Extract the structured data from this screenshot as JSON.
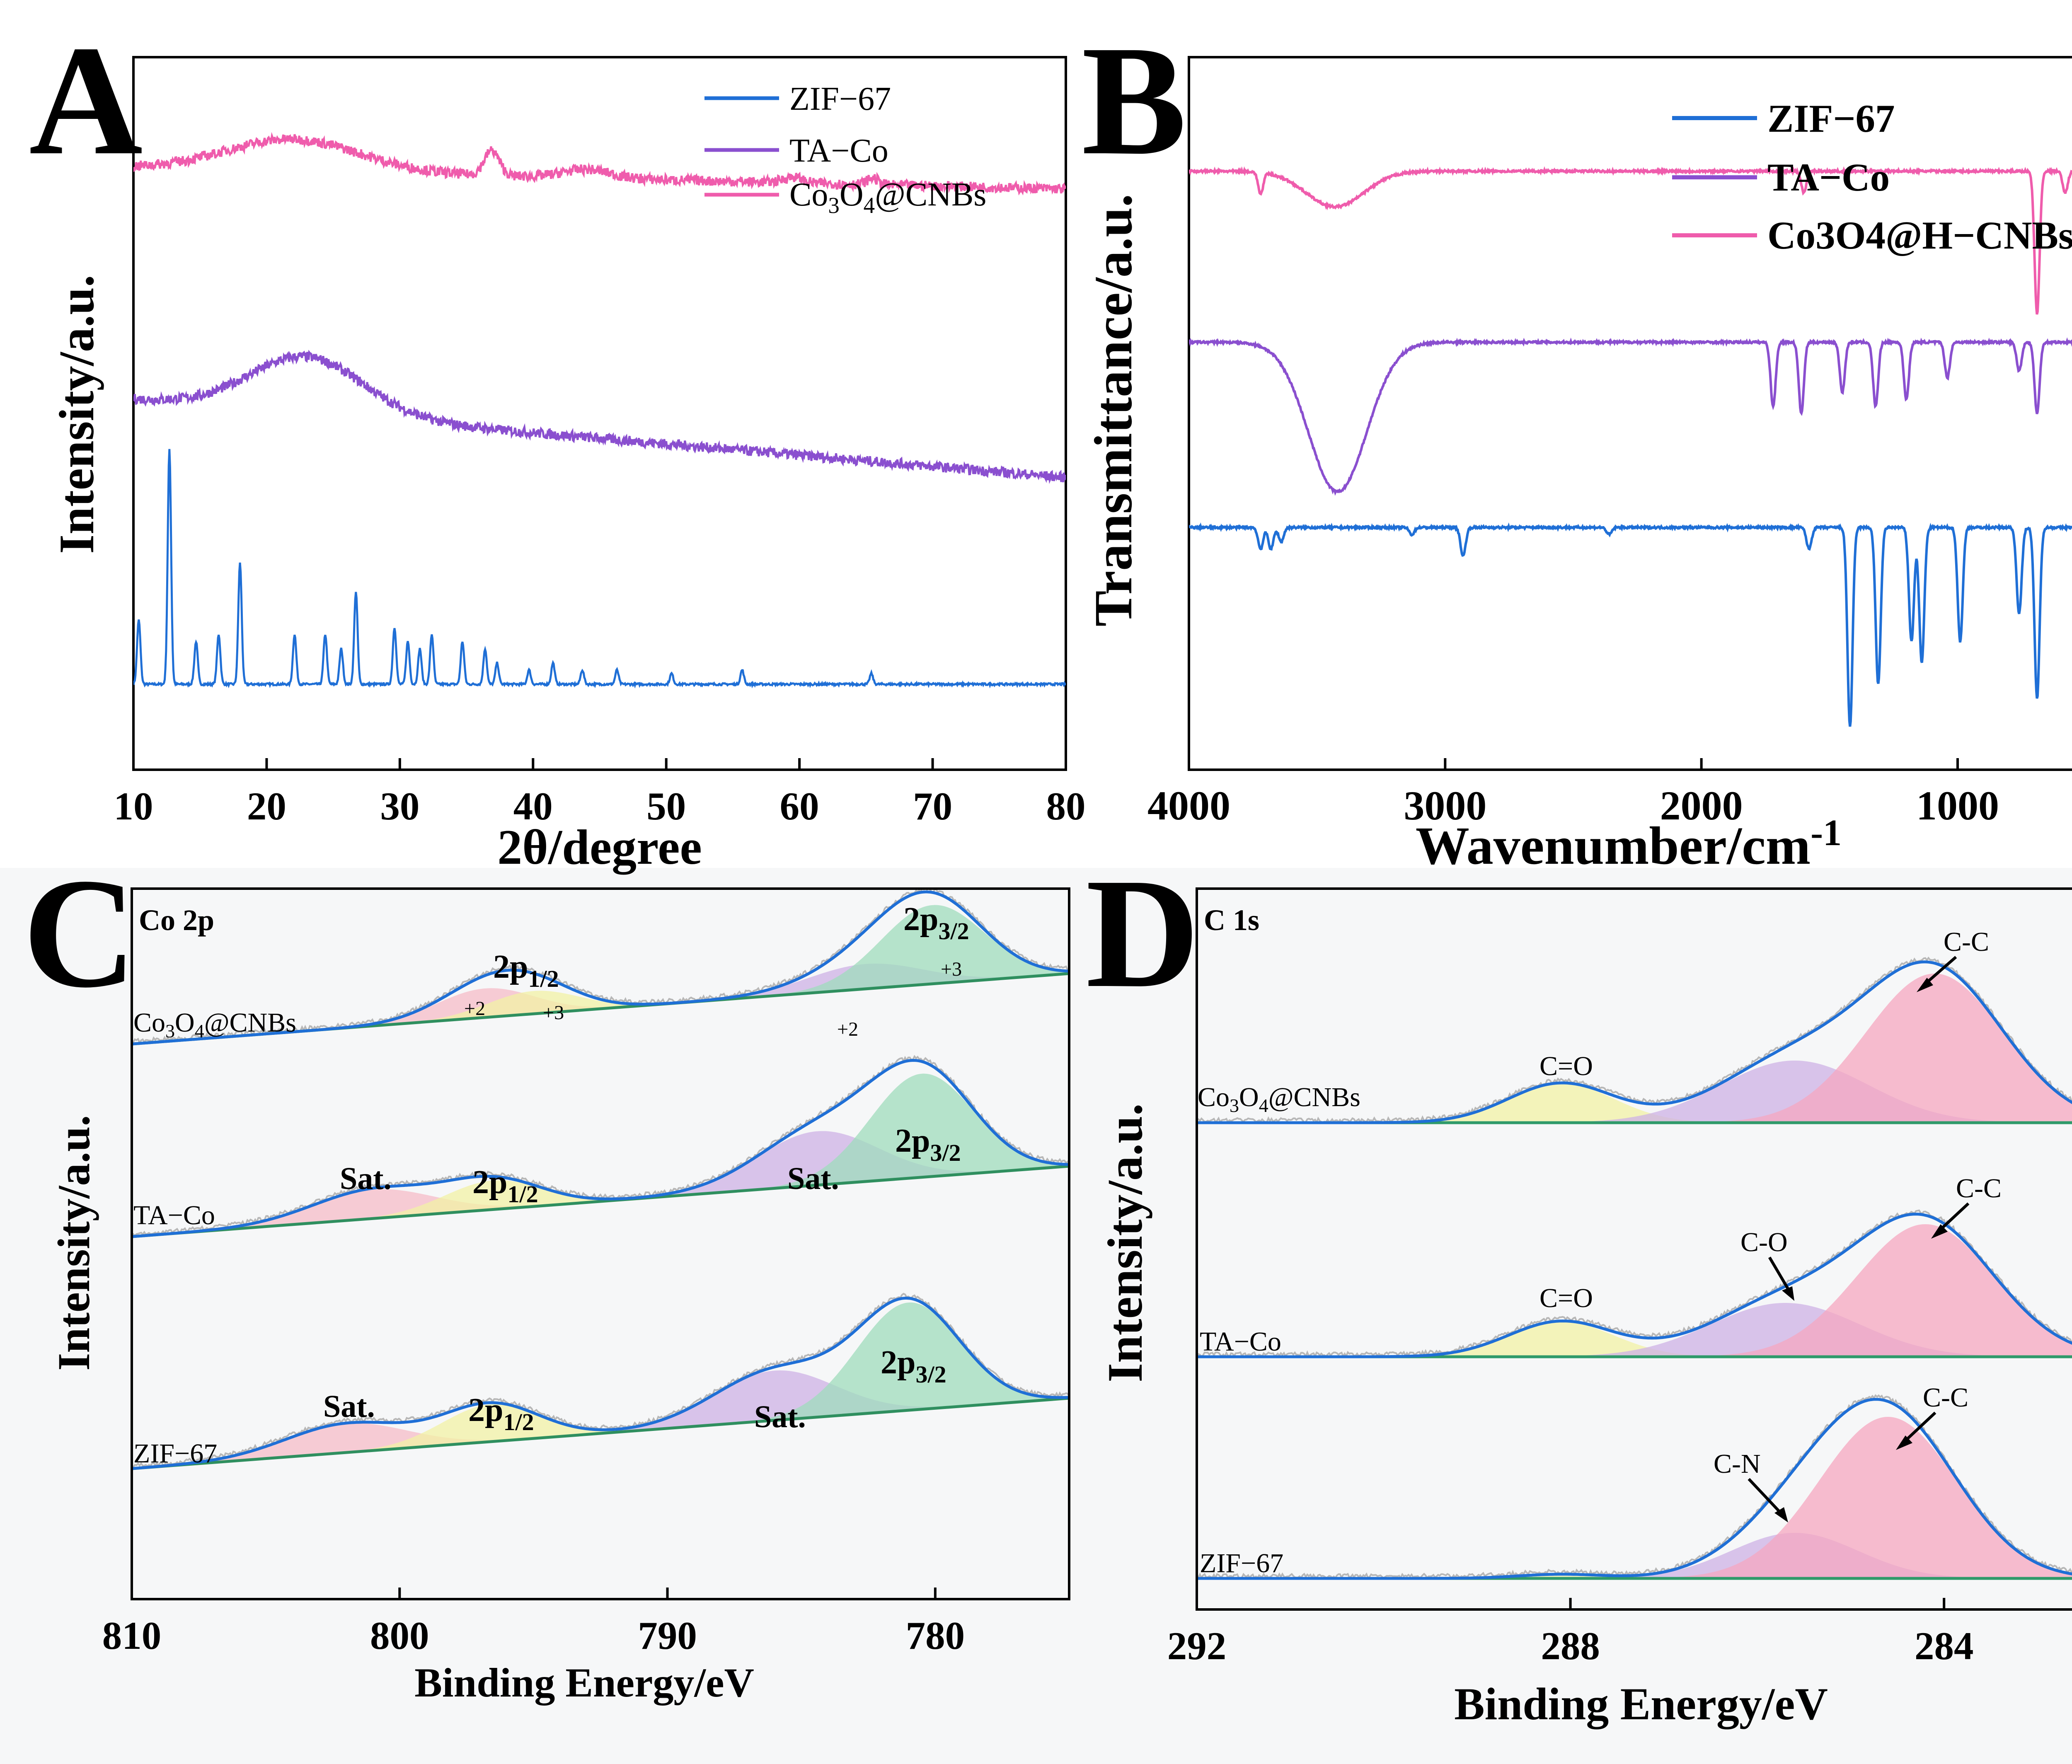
{
  "chart_data": [
    {
      "panel": "A",
      "type": "line",
      "xlabel": "2θ/degree",
      "ylabel": "Intensity/a.u.",
      "xlim": [
        10,
        80
      ],
      "xticks": [
        "10",
        "20",
        "30",
        "40",
        "50",
        "60",
        "70",
        "80"
      ],
      "legend_position": "top-right",
      "series": [
        {
          "name": "ZIF−67",
          "color": "#1f6fd6",
          "baseline": 0.12,
          "peaks": [
            [
              10.4,
              0.09
            ],
            [
              12.7,
              0.33
            ],
            [
              14.7,
              0.06
            ],
            [
              16.4,
              0.07
            ],
            [
              18.0,
              0.17
            ],
            [
              22.1,
              0.07
            ],
            [
              24.4,
              0.07
            ],
            [
              25.6,
              0.05
            ],
            [
              26.7,
              0.13
            ],
            [
              29.6,
              0.08
            ],
            [
              30.6,
              0.06
            ],
            [
              31.5,
              0.05
            ],
            [
              32.4,
              0.07
            ],
            [
              34.7,
              0.06
            ],
            [
              36.4,
              0.05
            ],
            [
              37.3,
              0.03
            ],
            [
              39.7,
              0.02
            ],
            [
              41.5,
              0.03
            ],
            [
              43.7,
              0.02
            ],
            [
              46.3,
              0.02
            ],
            [
              50.4,
              0.015
            ],
            [
              55.7,
              0.02
            ],
            [
              65.4,
              0.015
            ]
          ]
        },
        {
          "name": "TA−Co",
          "color": "#8a4fcf",
          "humps": [
            [
              23,
              0.42,
              0.08,
              6
            ]
          ],
          "start": 0.52,
          "end": 0.41
        },
        {
          "name": "Co3O4@CNBs",
          "color": "#ef5cac",
          "humps": [
            [
              22,
              0.875,
              0.045,
              7
            ],
            [
              36.9,
              0.865,
              0.035,
              0.8
            ],
            [
              44,
              0.845,
              0.012,
              2.5
            ],
            [
              59.5,
              0.825,
              0.008,
              1
            ],
            [
              65.5,
              0.826,
              0.009,
              0.6
            ]
          ],
          "start": 0.845,
          "end": 0.815
        }
      ],
      "legend": [
        "ZIF−67",
        "TA−Co",
        "Co",
        "3",
        "O",
        "4",
        "@CNBs"
      ]
    },
    {
      "panel": "B",
      "type": "line",
      "xlabel": "Wavenumber/cm",
      "xlabel_sup": "-1",
      "ylabel": "Transmittance/a.u.",
      "xlim": [
        4000,
        400
      ],
      "xticks": [
        "4000",
        "3000",
        "2000",
        "1000"
      ],
      "legend_position": "top-right",
      "series": [
        {
          "name": "ZIF−67",
          "color": "#1f6fd6",
          "baseline": 0.34,
          "dips": [
            [
              3720,
              0.03
            ],
            [
              3680,
              0.03
            ],
            [
              3640,
              0.02
            ],
            [
              3130,
              0.01
            ],
            [
              2930,
              0.04
            ],
            [
              2360,
              0.01
            ],
            [
              1580,
              0.03
            ],
            [
              1420,
              0.28
            ],
            [
              1310,
              0.22
            ],
            [
              1180,
              0.16
            ],
            [
              1140,
              0.19
            ],
            [
              990,
              0.16
            ],
            [
              760,
              0.12
            ],
            [
              690,
              0.24
            ]
          ]
        },
        {
          "name": "TA−Co",
          "color": "#8a4fcf",
          "baseline": 0.6,
          "dips": [
            [
              3420,
              0.21
            ],
            [
              1720,
              0.09
            ],
            [
              1610,
              0.1
            ],
            [
              1450,
              0.07
            ],
            [
              1320,
              0.09
            ],
            [
              1200,
              0.08
            ],
            [
              1040,
              0.05
            ],
            [
              760,
              0.04
            ],
            [
              690,
              0.1
            ]
          ]
        },
        {
          "name": "Co3O4@H−CNBs",
          "color": "#ef5cac",
          "baseline": 0.84,
          "dips": [
            [
              3720,
              0.03
            ],
            [
              3430,
              0.05
            ],
            [
              1600,
              0.03
            ],
            [
              690,
              0.2
            ],
            [
              580,
              0.03
            ]
          ]
        }
      ],
      "legend": [
        "ZIF−67",
        "TA−Co",
        "Co3O4@H−CNBs"
      ]
    },
    {
      "panel": "C",
      "type": "area",
      "title": "Co 2p",
      "xlabel": "Binding Energy/eV",
      "ylabel": "Intensity/a.u.",
      "xlim": [
        810,
        775
      ],
      "xticks": [
        "810",
        "800",
        "790",
        "780"
      ],
      "stacks": [
        {
          "name": "Co3O4@CNBs",
          "components": [
            [
              796.8,
              3.2,
              "#f6bcc8"
            ],
            [
              795,
              3.0,
              "#f1f1a6"
            ],
            [
              782.6,
              3.8,
              "#cdb2e6"
            ],
            [
              780.1,
              3.4,
              "#9fdcbc"
            ]
          ]
        },
        {
          "name": "TA−Co",
          "components": [
            [
              801,
              4,
              "#f6bcc8"
            ],
            [
              796.5,
              3.2,
              "#f1f1a6"
            ],
            [
              784.4,
              4,
              "#cdb2e6"
            ],
            [
              780.5,
              3.4,
              "#9fdcbc"
            ]
          ]
        },
        {
          "name": "ZIF−67",
          "components": [
            [
              802,
              4,
              "#f6bcc8"
            ],
            [
              796.6,
              3.2,
              "#f1f1a6"
            ],
            [
              786,
              4,
              "#cdb2e6"
            ],
            [
              781,
              3.4,
              "#9fdcbc"
            ]
          ]
        }
      ],
      "annotations": [
        "Sat.",
        "Sat.",
        "Sat.",
        "Sat.",
        "2p",
        "1/2",
        "2p",
        "3/2",
        "+2",
        "+3",
        "+2",
        "+3",
        "Co",
        "3",
        "O",
        "4",
        "@CNBs",
        "TA−Co",
        "ZIF−67"
      ]
    },
    {
      "panel": "D",
      "type": "area",
      "title": "C 1s",
      "xlabel": "Binding Energy/eV",
      "ylabel": "Intensity/a.u.",
      "xlim": [
        292,
        282
      ],
      "xticks": [
        "292",
        "288",
        "284"
      ],
      "stacks": [
        {
          "name": "Co3O4@CNBs",
          "components": [
            [
              288.1,
              1.0,
              "#f1f1a6"
            ],
            [
              285.6,
              1.4,
              "#cdb2e6"
            ],
            [
              284.1,
              1.3,
              "#f6a7c0"
            ]
          ]
        },
        {
          "name": "TA−Co",
          "components": [
            [
              288.1,
              1.0,
              "#f1f1a6"
            ],
            [
              285.7,
              1.4,
              "#cdb2e6"
            ],
            [
              284.2,
              1.3,
              "#f6a7c0"
            ]
          ]
        },
        {
          "name": "ZIF−67",
          "components": [
            [
              288.1,
              0.8,
              "#f1f1a6"
            ],
            [
              285.6,
              1.2,
              "#cdb2e6"
            ],
            [
              284.6,
              1.3,
              "#f6a7c0"
            ]
          ]
        }
      ],
      "annotations": [
        "C-C",
        "C-C",
        "C-C",
        "C=O",
        "C=O",
        "C-O",
        "C-N",
        "Co",
        "3",
        "O",
        "4",
        "@CNBs",
        "TA−Co",
        "ZIF−67"
      ]
    }
  ],
  "panel_letters": [
    "A",
    "B",
    "C",
    "D"
  ]
}
